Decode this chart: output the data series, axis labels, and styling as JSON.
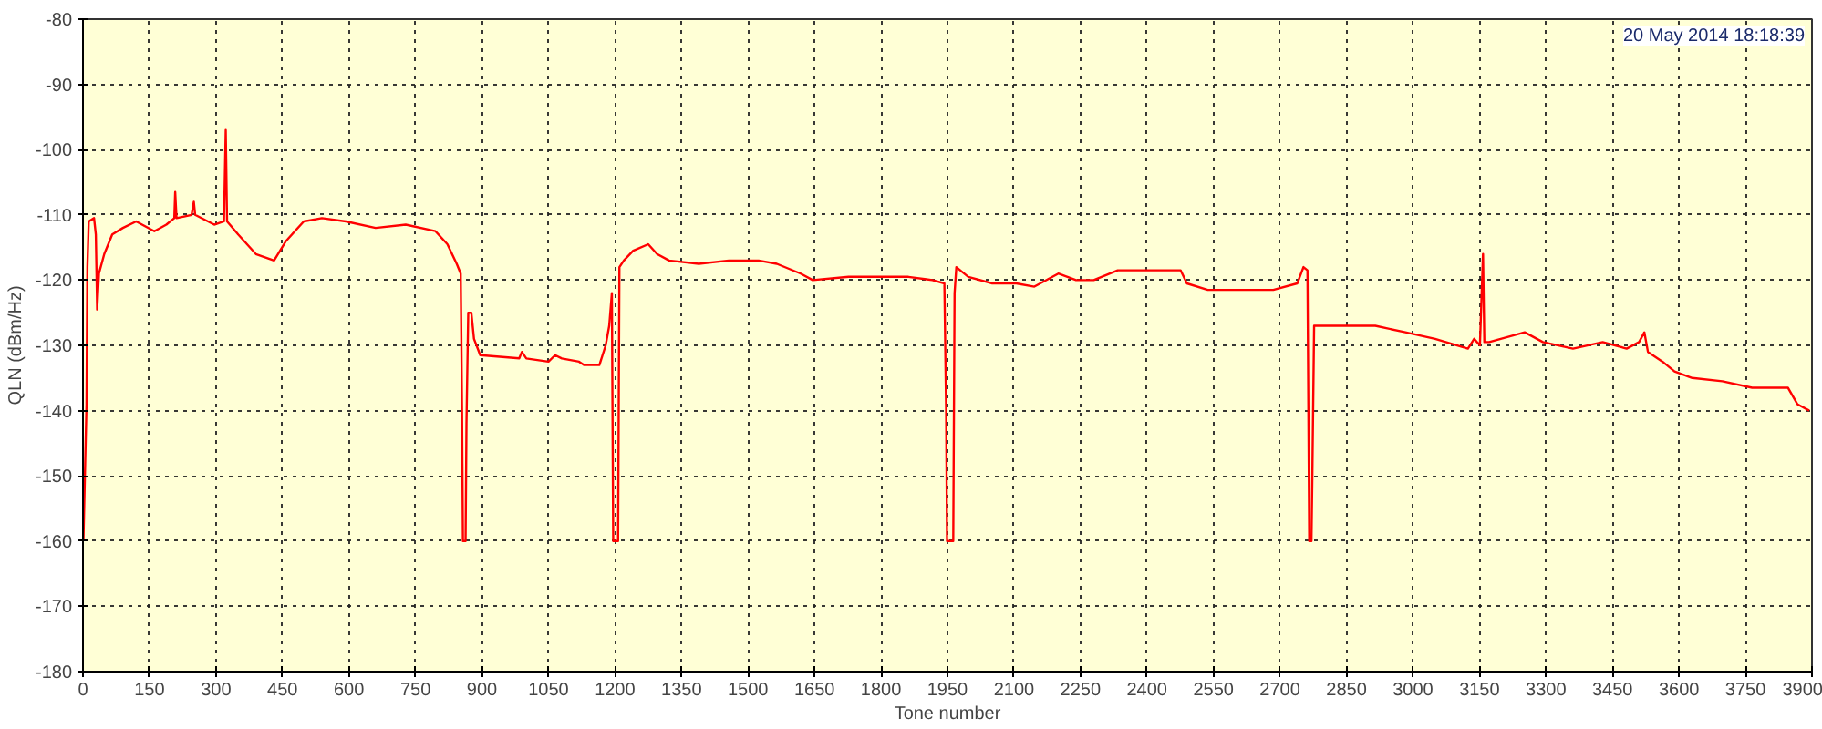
{
  "chart_data": {
    "type": "line",
    "xlabel": "Tone number",
    "ylabel": "QLN (dBm/Hz)",
    "annotations": [
      "20 May 2014 18:18:39"
    ],
    "x": [
      1,
      8,
      10,
      13,
      25,
      29,
      32,
      36,
      48,
      66,
      90,
      120,
      161,
      188,
      206,
      208,
      211,
      245,
      250,
      253,
      296,
      318,
      322,
      325,
      350,
      390,
      431,
      458,
      498,
      539,
      593,
      660,
      728,
      795,
      822,
      843,
      852,
      855,
      857,
      863,
      865,
      869,
      876,
      882,
      896,
      984,
      990,
      1000,
      1050,
      1065,
      1080,
      1119,
      1130,
      1165,
      1179,
      1187,
      1193,
      1196,
      1207,
      1210,
      1220,
      1241,
      1275,
      1295,
      1322,
      1389,
      1457,
      1524,
      1565,
      1619,
      1646,
      1727,
      1794,
      1862,
      1916,
      1943,
      1947,
      1949,
      1963,
      1966,
      1970,
      1997,
      2051,
      2105,
      2146,
      2200,
      2240,
      2280,
      2334,
      2476,
      2490,
      2537,
      2577,
      2685,
      2739,
      2753,
      2762,
      2764,
      2766,
      2771,
      2773,
      2777,
      2820,
      2915,
      2983,
      3050,
      3124,
      3138,
      3151,
      3158,
      3161,
      3172,
      3252,
      3293,
      3361,
      3428,
      3482,
      3510,
      3522,
      3530,
      3563,
      3590,
      3630,
      3698,
      3765,
      3846,
      3867,
      3894
    ],
    "series": [
      {
        "color": "#ff0000",
        "values": [
          -160,
          -139,
          -118,
          -111,
          -110.5,
          -113,
          -124.5,
          -119,
          -116,
          -113,
          -112,
          -111,
          -112.5,
          -111.5,
          -110.5,
          -106.5,
          -110.5,
          -110,
          -108,
          -110,
          -111.5,
          -111,
          -97,
          -111,
          -113,
          -116,
          -117,
          -114,
          -111,
          -110.5,
          -111,
          -112,
          -111.5,
          -112.5,
          -114.5,
          -117.5,
          -119,
          -140,
          -160,
          -160,
          -142,
          -125,
          -125,
          -129,
          -131.5,
          -132,
          -131,
          -132,
          -132.5,
          -131.5,
          -132,
          -132.5,
          -133,
          -133,
          -130,
          -127,
          -122,
          -160,
          -160,
          -118,
          -117,
          -115.5,
          -114.5,
          -116,
          -117,
          -117.5,
          -117,
          -117,
          -117.5,
          -119,
          -120,
          -119.5,
          -119.5,
          -119.5,
          -120,
          -120.5,
          -140,
          -160,
          -160,
          -122,
          -118,
          -119.5,
          -120.5,
          -120.5,
          -121,
          -119,
          -120,
          -120,
          -118.5,
          -118.5,
          -120.5,
          -121.5,
          -121.5,
          -121.5,
          -120.5,
          -118,
          -118.5,
          -139,
          -160,
          -160,
          -150,
          -127,
          -127,
          -127,
          -128,
          -129,
          -130.5,
          -129,
          -130,
          -116,
          -129.5,
          -129.5,
          -128,
          -129.5,
          -130.5,
          -129.5,
          -130.5,
          -129.5,
          -128,
          -131,
          -132.5,
          -134,
          -135,
          -135.5,
          -136.5,
          -136.5,
          -139,
          -140
        ]
      }
    ],
    "xlim": [
      0,
      3900
    ],
    "ylim": [
      -180,
      -80
    ],
    "xticks": [
      0,
      150,
      300,
      450,
      600,
      750,
      900,
      1050,
      1200,
      1350,
      1500,
      1650,
      1800,
      1950,
      2100,
      2250,
      2400,
      2550,
      2700,
      2850,
      3000,
      3150,
      3300,
      3450,
      3600,
      3750,
      3900
    ],
    "yticks": [
      -180,
      -170,
      -160,
      -150,
      -140,
      -130,
      -120,
      -110,
      -100,
      -90,
      -80
    ],
    "grid": true,
    "line_style": "solid"
  }
}
